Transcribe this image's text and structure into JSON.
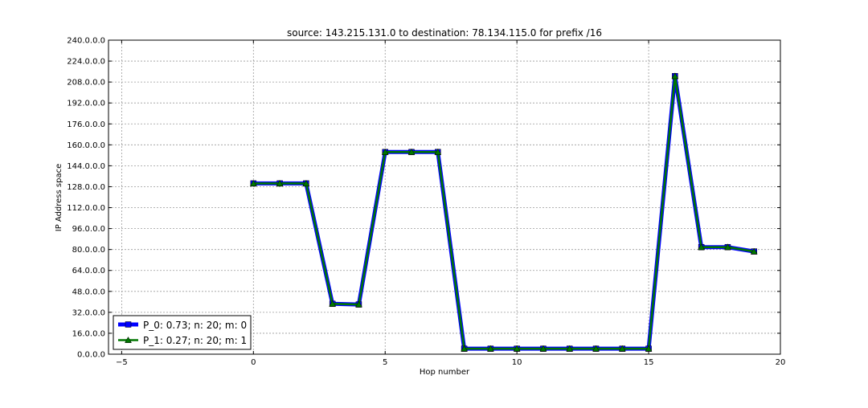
{
  "chart_data": {
    "type": "line",
    "title": "source: 143.215.131.0 to destination: 78.134.115.0 for prefix /16",
    "xlabel": "Hop number",
    "ylabel": "IP Address space",
    "xlim": [
      -5.5,
      20
    ],
    "ylim": [
      0,
      240
    ],
    "x_ticks": [
      -5,
      0,
      5,
      10,
      15,
      20
    ],
    "x_tick_labels": [
      "−5",
      "0",
      "5",
      "10",
      "15",
      "20"
    ],
    "y_ticks": [
      0,
      16,
      32,
      48,
      64,
      80,
      96,
      112,
      128,
      144,
      160,
      176,
      192,
      208,
      224,
      240
    ],
    "y_tick_labels": [
      "0.0.0.0",
      "16.0.0.0",
      "32.0.0.0",
      "48.0.0.0",
      "64.0.0.0",
      "80.0.0.0",
      "96.0.0.0",
      "112.0.0.0",
      "128.0.0.0",
      "144.0.0.0",
      "160.0.0.0",
      "176.0.0.0",
      "192.0.0.0",
      "208.0.0.0",
      "224.0.0.0",
      "240.0.0.0"
    ],
    "grid": true,
    "legend_position": "lower-left",
    "series": [
      {
        "name": "P_0: 0.73; n: 20; m: 0",
        "color": "#0000ff",
        "marker": "square",
        "x": [
          0,
          1,
          2,
          3,
          4,
          5,
          6,
          7,
          8,
          9,
          10,
          11,
          12,
          13,
          14,
          15,
          16,
          17,
          18,
          19
        ],
        "y": [
          130.5,
          130.5,
          130.5,
          38.5,
          38,
          154.5,
          154.5,
          154.5,
          4.2,
          4.2,
          4.2,
          4.2,
          4.2,
          4.2,
          4.2,
          4.2,
          212.5,
          81.8,
          81.8,
          78.5
        ]
      },
      {
        "name": "P_1: 0.27; n: 20; m: 1",
        "color": "#007700",
        "marker": "triangle",
        "x": [
          0,
          1,
          2,
          3,
          4,
          5,
          6,
          7,
          8,
          9,
          10,
          11,
          12,
          13,
          14,
          15,
          16,
          17,
          18,
          19
        ],
        "y": [
          130.5,
          130.5,
          130.5,
          38.5,
          38,
          154.5,
          154.5,
          154.5,
          4.2,
          4.2,
          4.2,
          4.2,
          4.2,
          4.2,
          4.2,
          4.2,
          212.5,
          81.8,
          81.8,
          78.5
        ]
      }
    ]
  }
}
